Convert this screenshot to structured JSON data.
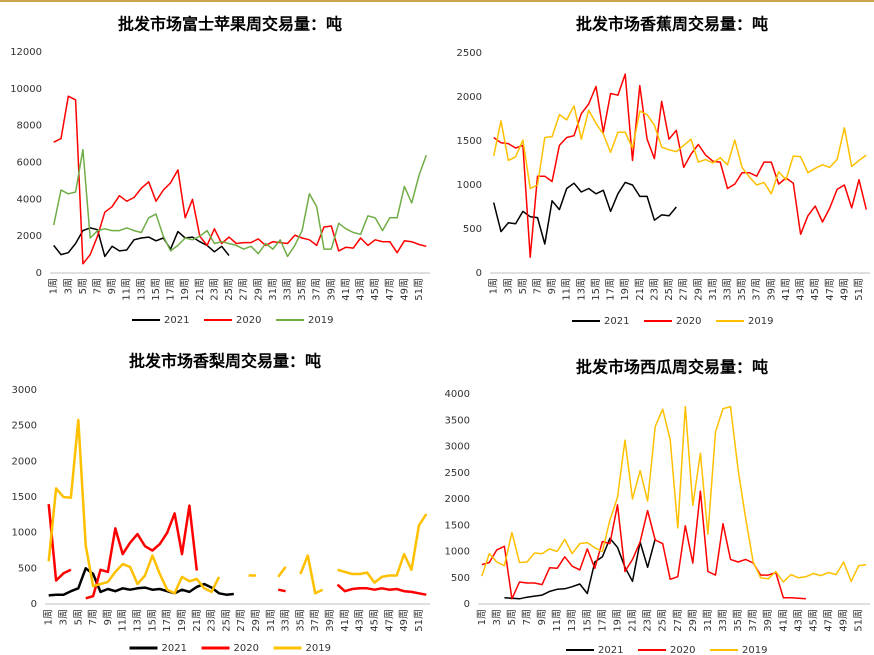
{
  "chart_data": [
    {
      "type": "line",
      "title": "批发市场富士苹果周交易量：吨",
      "categories": [
        "1周",
        null,
        "3周",
        null,
        "5周",
        null,
        "7周",
        null,
        "9周",
        null,
        "11周",
        null,
        "13周",
        null,
        "15周",
        null,
        "17周",
        null,
        "19周",
        null,
        "21周",
        null,
        "23周",
        null,
        "25周",
        null,
        "27周",
        null,
        "29周",
        null,
        "31周",
        null,
        "33周",
        null,
        "35周",
        null,
        "37周",
        null,
        "39周",
        null,
        "41周",
        null,
        "43周",
        null,
        "45周",
        null,
        "47周",
        null,
        "49周",
        null,
        "51周",
        null
      ],
      "series": [
        {
          "name": "2021",
          "color": "#000000",
          "values": [
            1500,
            1000,
            1100,
            1600,
            2300,
            2450,
            2350,
            900,
            1450,
            1200,
            1250,
            1800,
            1900,
            1950,
            1750,
            1900,
            1300,
            2250,
            1900,
            1950,
            1700,
            1500,
            1150,
            1450,
            950,
            null,
            null,
            null,
            null,
            null,
            null,
            null,
            null,
            null,
            null,
            null,
            null,
            null,
            null,
            null,
            null,
            null,
            null,
            null,
            null,
            null,
            null,
            null,
            null,
            null,
            null,
            null
          ]
        },
        {
          "name": "2020",
          "color": "#ff0000",
          "values": [
            7100,
            7300,
            9600,
            9400,
            500,
            1000,
            2000,
            3300,
            3600,
            4200,
            3900,
            4100,
            4600,
            4950,
            3900,
            4500,
            4900,
            5600,
            3000,
            4000,
            2000,
            1500,
            2400,
            1600,
            1950,
            1600,
            1650,
            1650,
            1850,
            1500,
            1700,
            1650,
            1600,
            2050,
            1900,
            1800,
            1500,
            2500,
            2550,
            1200,
            1400,
            1350,
            1900,
            1500,
            1800,
            1700,
            1700,
            1100,
            1750,
            1700,
            1550,
            1450
          ]
        },
        {
          "name": "2019",
          "color": "#70ad47",
          "values": [
            2600,
            4500,
            4300,
            4400,
            6700,
            1900,
            2300,
            2400,
            2300,
            2300,
            2450,
            2300,
            2200,
            3000,
            3200,
            2000,
            1200,
            1500,
            1900,
            1800,
            2000,
            2300,
            1600,
            1700,
            1600,
            1500,
            1300,
            1450,
            1050,
            1600,
            1300,
            1800,
            900,
            1500,
            2300,
            4300,
            3600,
            1300,
            1300,
            2700,
            2400,
            2200,
            2100,
            3100,
            3000,
            2300,
            3000,
            3000,
            4700,
            3800,
            5300,
            6400
          ]
        }
      ],
      "ylim": [
        0,
        12000
      ],
      "yticks": [
        0,
        2000,
        4000,
        6000,
        8000,
        10000,
        12000
      ],
      "line_width": 1.5
    },
    {
      "type": "line",
      "title": "批发市场香蕉周交易量：吨",
      "categories": [
        "1周",
        null,
        "3周",
        null,
        "5周",
        null,
        "7周",
        null,
        "9周",
        null,
        "11周",
        null,
        "13周",
        null,
        "15周",
        null,
        "17周",
        null,
        "19周",
        null,
        "21周",
        null,
        "23周",
        null,
        "25周",
        null,
        "27周",
        null,
        "29周",
        null,
        "31周",
        null,
        "33周",
        null,
        "35周",
        null,
        "37周",
        null,
        "39周",
        null,
        "41周",
        null,
        "43周",
        null,
        "45周",
        null,
        "47周",
        null,
        "49周",
        null,
        "51周",
        null
      ],
      "series": [
        {
          "name": "2021",
          "color": "#000000",
          "values": [
            800,
            470,
            570,
            560,
            700,
            640,
            630,
            330,
            820,
            720,
            960,
            1020,
            920,
            960,
            900,
            940,
            700,
            900,
            1030,
            1000,
            870,
            870,
            600,
            660,
            650,
            750,
            null,
            null,
            null,
            null,
            null,
            null,
            null,
            null,
            null,
            null,
            null,
            null,
            null,
            null,
            null,
            null,
            null,
            null,
            null,
            null,
            null,
            null,
            null,
            null,
            null,
            null
          ]
        },
        {
          "name": "2020",
          "color": "#ff0000",
          "values": [
            1540,
            1480,
            1470,
            1420,
            1450,
            180,
            1100,
            1100,
            1040,
            1450,
            1540,
            1560,
            1810,
            1920,
            2120,
            1600,
            2040,
            2020,
            2260,
            1280,
            2130,
            1520,
            1300,
            1950,
            1520,
            1620,
            1200,
            1350,
            1460,
            1340,
            1270,
            1260,
            960,
            1010,
            1140,
            1140,
            1100,
            1260,
            1260,
            1010,
            1080,
            1020,
            440,
            650,
            760,
            580,
            740,
            950,
            1000,
            740,
            1060,
            720
          ]
        },
        {
          "name": "2019",
          "color": "#ffc000",
          "values": [
            1330,
            1730,
            1280,
            1320,
            1510,
            960,
            1000,
            1540,
            1550,
            1800,
            1740,
            1900,
            1520,
            1850,
            1700,
            1580,
            1370,
            1600,
            1600,
            1420,
            1840,
            1800,
            1680,
            1430,
            1400,
            1380,
            1450,
            1520,
            1260,
            1290,
            1250,
            1310,
            1230,
            1510,
            1200,
            1090,
            1000,
            1030,
            900,
            1150,
            1060,
            1330,
            1320,
            1140,
            1190,
            1230,
            1200,
            1290,
            1650,
            1210,
            1280,
            1340
          ]
        }
      ],
      "ylim": [
        0,
        2500
      ],
      "yticks": [
        0,
        500,
        1000,
        1500,
        2000,
        2500
      ],
      "line_width": 1.5
    },
    {
      "type": "line",
      "title": "批发市场香梨周交易量：吨",
      "categories": [
        "1周",
        null,
        "3周",
        null,
        "5周",
        null,
        "7周",
        null,
        "9周",
        null,
        "11周",
        null,
        "13周",
        null,
        "15周",
        null,
        "17周",
        null,
        "19周",
        null,
        "21周",
        null,
        "23周",
        null,
        "25周",
        null,
        "27周",
        null,
        "29周",
        null,
        "31周",
        null,
        "33周",
        null,
        "35周",
        null,
        "37周",
        null,
        "39周",
        null,
        "41周",
        null,
        "43周",
        null,
        "45周",
        null,
        "47周",
        null,
        "49周",
        null,
        "51周",
        null
      ],
      "series": [
        {
          "name": "2021",
          "color": "#000000",
          "values": [
            120,
            130,
            130,
            180,
            220,
            500,
            420,
            170,
            210,
            180,
            220,
            200,
            220,
            230,
            200,
            210,
            180,
            150,
            200,
            170,
            240,
            280,
            230,
            150,
            130,
            140,
            null,
            null,
            null,
            null,
            null,
            null,
            null,
            null,
            null,
            null,
            null,
            null,
            null,
            null,
            null,
            null,
            null,
            null,
            null,
            null,
            null,
            null,
            null,
            null,
            null,
            null
          ]
        },
        {
          "name": "2020",
          "color": "#ff0000",
          "values": [
            1400,
            330,
            430,
            480,
            null,
            80,
            110,
            480,
            450,
            1060,
            700,
            860,
            980,
            810,
            750,
            840,
            1000,
            1270,
            700,
            1380,
            470,
            null,
            null,
            null,
            null,
            null,
            null,
            null,
            null,
            null,
            null,
            200,
            180,
            null,
            null,
            null,
            null,
            null,
            null,
            270,
            180,
            210,
            220,
            220,
            200,
            220,
            200,
            210,
            180,
            170,
            150,
            130
          ]
        },
        {
          "name": "2019",
          "color": "#ffc000",
          "values": [
            600,
            1620,
            1500,
            1490,
            2580,
            820,
            250,
            280,
            310,
            450,
            560,
            520,
            280,
            400,
            680,
            420,
            200,
            150,
            380,
            320,
            350,
            220,
            170,
            380,
            null,
            null,
            null,
            400,
            400,
            null,
            null,
            380,
            520,
            null,
            420,
            680,
            150,
            200,
            null,
            480,
            450,
            420,
            420,
            440,
            300,
            380,
            400,
            400,
            700,
            480,
            1100,
            1260
          ]
        }
      ],
      "ylim": [
        0,
        3000
      ],
      "yticks": [
        0,
        500,
        1000,
        1500,
        2000,
        2500,
        3000
      ],
      "line_width": 2.5
    },
    {
      "type": "line",
      "title": "批发市场西瓜周交易量：吨",
      "categories": [
        "1周",
        null,
        "3周",
        null,
        "5周",
        null,
        "7周",
        null,
        "9周",
        null,
        "11周",
        null,
        "13周",
        null,
        "15周",
        null,
        "17周",
        null,
        "19周",
        null,
        "21周",
        null,
        "23周",
        null,
        "25周",
        null,
        "27周",
        null,
        "29周",
        null,
        "31周",
        null,
        "33周",
        null,
        "35周",
        null,
        "37周",
        null,
        "39周",
        null,
        "41周",
        null,
        "43周",
        null,
        "45周",
        null,
        "47周",
        null,
        "49周",
        null,
        "51周",
        null
      ],
      "series": [
        {
          "name": "2021",
          "color": "#000000",
          "values": [
            null,
            null,
            null,
            120,
            110,
            100,
            130,
            150,
            170,
            240,
            280,
            290,
            330,
            380,
            200,
            800,
            900,
            1250,
            1080,
            700,
            430,
            1180,
            700,
            1240,
            null,
            null,
            null,
            null,
            null,
            null,
            null,
            null,
            null,
            null,
            null,
            null,
            null,
            null,
            null,
            null,
            null,
            null,
            null,
            null,
            null,
            null,
            null,
            null,
            null,
            null,
            null,
            null
          ]
        },
        {
          "name": "2020",
          "color": "#ff0000",
          "values": [
            750,
            790,
            1030,
            1100,
            100,
            420,
            400,
            400,
            370,
            690,
            680,
            900,
            720,
            650,
            1050,
            680,
            1190,
            1150,
            1890,
            620,
            850,
            1180,
            1780,
            1220,
            1150,
            470,
            520,
            1490,
            780,
            2150,
            620,
            550,
            1530,
            850,
            800,
            850,
            780,
            550,
            550,
            600,
            120,
            120,
            110,
            100,
            null,
            null,
            null,
            null,
            null,
            null,
            null,
            null
          ]
        },
        {
          "name": "2019",
          "color": "#ffc000",
          "values": [
            530,
            960,
            800,
            730,
            1360,
            790,
            800,
            970,
            960,
            1050,
            1000,
            1230,
            960,
            1150,
            1170,
            1070,
            1000,
            1600,
            2030,
            3120,
            2000,
            2540,
            1960,
            3380,
            3710,
            3130,
            1450,
            3760,
            1880,
            2870,
            1330,
            3280,
            3720,
            3760,
            2560,
            1640,
            800,
            500,
            480,
            620,
            420,
            560,
            500,
            520,
            580,
            540,
            600,
            560,
            800,
            430,
            730,
            750
          ]
        }
      ],
      "ylim": [
        0,
        4000
      ],
      "yticks": [
        0,
        500,
        1000,
        1500,
        2000,
        2500,
        3000,
        3500,
        4000
      ],
      "line_width": 1.5
    }
  ]
}
